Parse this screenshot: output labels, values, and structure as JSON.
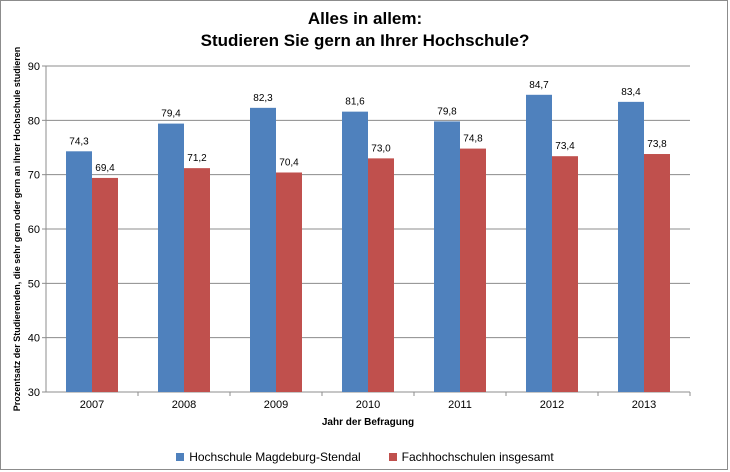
{
  "chart_data": {
    "type": "bar",
    "title": [
      "Alles in allem:",
      "Studieren Sie gern an Ihrer Hochschule?"
    ],
    "xlabel": "Jahr der Befragung",
    "ylabel": "Prozentsatz der Studierenden, die sehr gern oder gern  an ihrer Hochschule studieren",
    "categories": [
      "2007",
      "2008",
      "2009",
      "2010",
      "2011",
      "2012",
      "2013"
    ],
    "ylim": [
      30,
      90
    ],
    "yticks": [
      30,
      40,
      50,
      60,
      70,
      80,
      90
    ],
    "grid": true,
    "legend_position": "bottom",
    "series": [
      {
        "name": "Hochschule Magdeburg-Stendal",
        "color": "#4f81bd",
        "values": [
          74.3,
          79.4,
          82.3,
          81.6,
          79.8,
          84.7,
          83.4
        ],
        "labels": [
          "74,3",
          "79,4",
          "82,3",
          "81,6",
          "79,8",
          "84,7",
          "83,4"
        ]
      },
      {
        "name": "Fachhochschulen insgesamt",
        "color": "#c0504d",
        "values": [
          69.4,
          71.2,
          70.4,
          73.0,
          74.8,
          73.4,
          73.8
        ],
        "labels": [
          "69,4",
          "71,2",
          "70,4",
          "73,0",
          "74,8",
          "73,4",
          "73,8"
        ]
      }
    ]
  }
}
